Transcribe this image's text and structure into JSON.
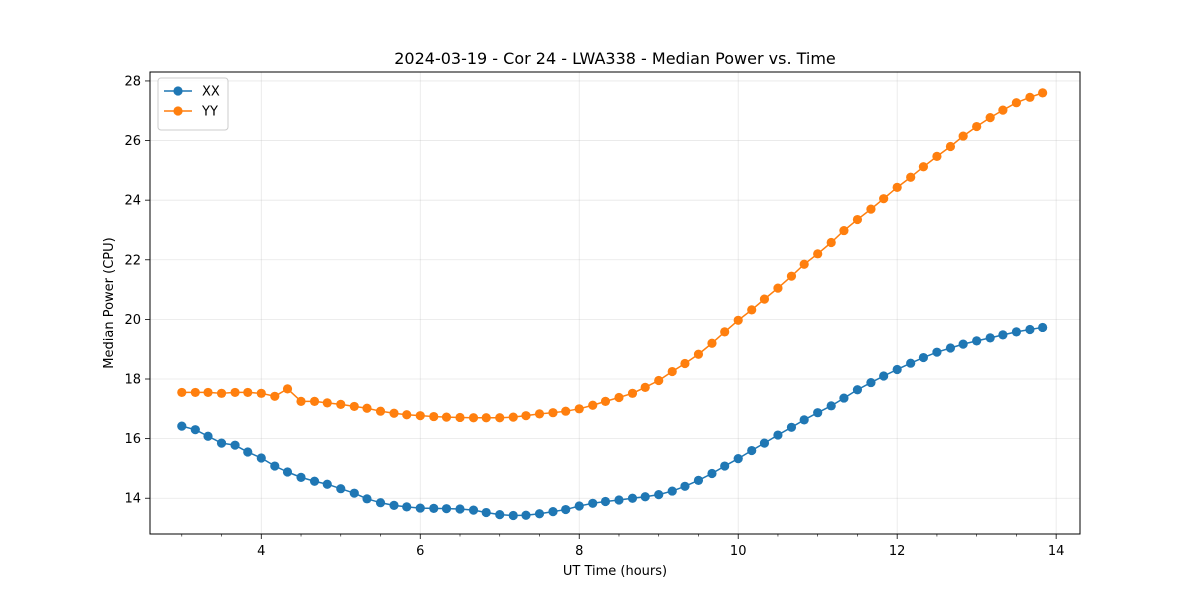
{
  "chart_data": {
    "type": "line",
    "title": "2024-03-19 - Cor 24 - LWA338 - Median Power vs. Time",
    "xlabel": "UT Time (hours)",
    "ylabel": "Median Power (CPU)",
    "xlim": [
      2.6,
      14.3
    ],
    "ylim": [
      12.8,
      28.3
    ],
    "xticks": [
      4,
      6,
      8,
      10,
      12,
      14
    ],
    "xtick_labels": [
      "4",
      "6",
      "8",
      "10",
      "12",
      "14"
    ],
    "yticks": [
      14,
      16,
      18,
      20,
      22,
      24,
      26,
      28
    ],
    "ytick_labels": [
      "14",
      "16",
      "18",
      "20",
      "22",
      "24",
      "26",
      "28"
    ],
    "grid": true,
    "legend_position": "top-left",
    "x": [
      3.0,
      3.17,
      3.33,
      3.5,
      3.67,
      3.83,
      4.0,
      4.17,
      4.33,
      4.5,
      4.67,
      4.83,
      5.0,
      5.17,
      5.33,
      5.5,
      5.67,
      5.83,
      6.0,
      6.17,
      6.33,
      6.5,
      6.67,
      6.83,
      7.0,
      7.17,
      7.33,
      7.5,
      7.67,
      7.83,
      8.0,
      8.17,
      8.33,
      8.5,
      8.67,
      8.83,
      9.0,
      9.17,
      9.33,
      9.5,
      9.67,
      9.83,
      10.0,
      10.17,
      10.33,
      10.5,
      10.67,
      10.83,
      11.0,
      11.17,
      11.33,
      11.5,
      11.67,
      11.83,
      12.0,
      12.17,
      12.33,
      12.5,
      12.67,
      12.83,
      13.0,
      13.17,
      13.33,
      13.5,
      13.67,
      13.83
    ],
    "series": [
      {
        "name": "XX",
        "color": "#1f77b4",
        "values": [
          16.42,
          16.3,
          16.08,
          15.85,
          15.78,
          15.55,
          15.35,
          15.08,
          14.88,
          14.7,
          14.57,
          14.47,
          14.32,
          14.17,
          13.98,
          13.85,
          13.76,
          13.71,
          13.67,
          13.66,
          13.65,
          13.64,
          13.6,
          13.52,
          13.45,
          13.42,
          13.43,
          13.48,
          13.55,
          13.62,
          13.74,
          13.83,
          13.89,
          13.94,
          14.0,
          14.05,
          14.12,
          14.24,
          14.4,
          14.6,
          14.83,
          15.08,
          15.33,
          15.6,
          15.85,
          16.12,
          16.38,
          16.63,
          16.87,
          17.1,
          17.36,
          17.64,
          17.88,
          18.1,
          18.32,
          18.53,
          18.72,
          18.9,
          19.04,
          19.17,
          19.28,
          19.38,
          19.48,
          19.58,
          19.66,
          19.73
        ]
      },
      {
        "name": "YY",
        "color": "#ff7f0e",
        "values": [
          17.55,
          17.55,
          17.55,
          17.52,
          17.55,
          17.55,
          17.52,
          17.42,
          17.67,
          17.25,
          17.25,
          17.2,
          17.15,
          17.08,
          17.02,
          16.92,
          16.85,
          16.8,
          16.77,
          16.74,
          16.72,
          16.71,
          16.7,
          16.7,
          16.7,
          16.72,
          16.77,
          16.83,
          16.87,
          16.92,
          17.0,
          17.12,
          17.25,
          17.38,
          17.52,
          17.72,
          17.95,
          18.25,
          18.52,
          18.83,
          19.2,
          19.58,
          19.97,
          20.32,
          20.68,
          21.05,
          21.45,
          21.85,
          22.2,
          22.58,
          22.98,
          23.35,
          23.7,
          24.05,
          24.43,
          24.77,
          25.12,
          25.47,
          25.8,
          26.15,
          26.47,
          26.77,
          27.02,
          27.27,
          27.45,
          27.6
        ]
      }
    ]
  }
}
